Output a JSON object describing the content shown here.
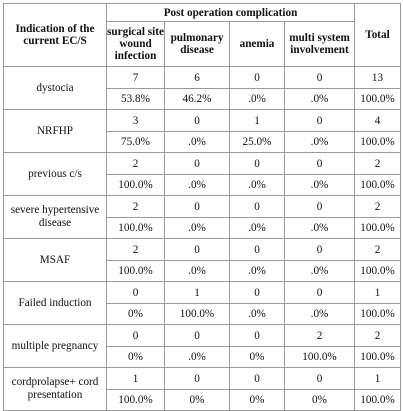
{
  "header": {
    "row_label": "Indication of the current EC/S",
    "group_label": "Post operation complication",
    "columns": [
      "surgical site wound infection",
      "pulmonary disease",
      "anemia",
      "multi system involvement"
    ],
    "total_label": "Total"
  },
  "rows": [
    {
      "label": "dystocia",
      "values": [
        "7",
        "6",
        "0",
        "0",
        "13"
      ],
      "percents": [
        "53.8%",
        "46.2%",
        ".0%",
        ".0%",
        "100.0%"
      ]
    },
    {
      "label": "NRFHP",
      "values": [
        "3",
        "0",
        "1",
        "0",
        "4"
      ],
      "percents": [
        "75.0%",
        ".0%",
        "25.0%",
        ".0%",
        "100.0%"
      ]
    },
    {
      "label": "previous c/s",
      "values": [
        "2",
        "0",
        "0",
        "0",
        "2"
      ],
      "percents": [
        "100.0%",
        ".0%",
        ".0%",
        ".0%",
        "100.0%"
      ]
    },
    {
      "label": "severe hypertensive disease",
      "values": [
        "2",
        "0",
        "0",
        "0",
        "2"
      ],
      "percents": [
        "100.0%",
        ".0%",
        ".0%",
        ".0%",
        "100.0%"
      ]
    },
    {
      "label": "MSAF",
      "values": [
        "2",
        "0",
        "0",
        "0",
        "2"
      ],
      "percents": [
        "100.0%",
        ".0%",
        ".0%",
        ".0%",
        "100.0%"
      ]
    },
    {
      "label": "Failed induction",
      "values": [
        "0",
        "1",
        "0",
        "0",
        "1"
      ],
      "percents": [
        "0%",
        "100.0%",
        ".0%",
        ".0%",
        "100.0%"
      ]
    },
    {
      "label": "multiple pregnancy",
      "values": [
        "0",
        "0",
        "0",
        "2",
        "2"
      ],
      "percents": [
        "0%",
        ".0%",
        "0%",
        "100.0%",
        "100.0%"
      ]
    },
    {
      "label": "cordprolapse+ cord presentation",
      "values": [
        "1",
        "0",
        "0",
        "0",
        "1"
      ],
      "percents": [
        "100.0%",
        "0%",
        "0%",
        "0%",
        "100.0%"
      ]
    }
  ]
}
